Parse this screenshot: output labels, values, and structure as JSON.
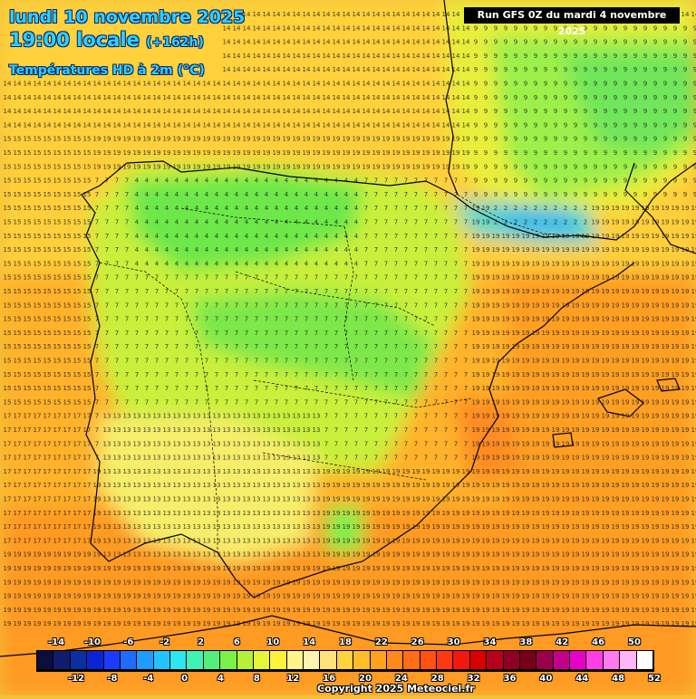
{
  "header": {
    "date_line": "lundi 10 novembre 2025",
    "time_line": "19:00 locale",
    "lead_time": "(+162h)",
    "variable": "Températures HD à 2m (°C)"
  },
  "run_info": "Run GFS 0Z du mardi 4 novembre 2025",
  "legend": {
    "top_labels": [
      "-14",
      "-10",
      "-6",
      "-2",
      "2",
      "6",
      "10",
      "14",
      "18",
      "22",
      "26",
      "30",
      "34",
      "38",
      "42",
      "46",
      "50"
    ],
    "bottom_labels": [
      "-12",
      "-8",
      "-4",
      "0",
      "4",
      "8",
      "12",
      "16",
      "20",
      "24",
      "28",
      "32",
      "36",
      "40",
      "44",
      "48",
      "52"
    ],
    "colors": [
      "#0b0e3d",
      "#101c6e",
      "#0b2f9e",
      "#0a25d6",
      "#1b3cff",
      "#1f6bff",
      "#1e9cff",
      "#22c4ff",
      "#2ee6f0",
      "#3ef3b5",
      "#52f07a",
      "#7ef04a",
      "#b4f23a",
      "#e4f63a",
      "#fff33a",
      "#fff58a",
      "#fff3b0",
      "#ffe27a",
      "#ffd23f",
      "#ffbd28",
      "#ffa21c",
      "#ff8a1a",
      "#ff6d16",
      "#ff5212",
      "#ff3a12",
      "#f2180e",
      "#d80000",
      "#b8001a",
      "#8f0024",
      "#760018",
      "#9a004a",
      "#c2008a",
      "#e600c8",
      "#ff3fe6",
      "#ff7af0",
      "#ffb6f6",
      "#ffffff"
    ]
  },
  "copyright": "Copyright 2025 Meteociel.fr",
  "map_values": {
    "top_left_region": "14",
    "west_atlantic": "15",
    "southwest_atlantic": "17",
    "south": "19",
    "mediterranean": "19",
    "north_spain_mountains": "4",
    "pyrenees": "2",
    "central_meseta": "7",
    "south_spain": "13",
    "france_north": "9"
  }
}
